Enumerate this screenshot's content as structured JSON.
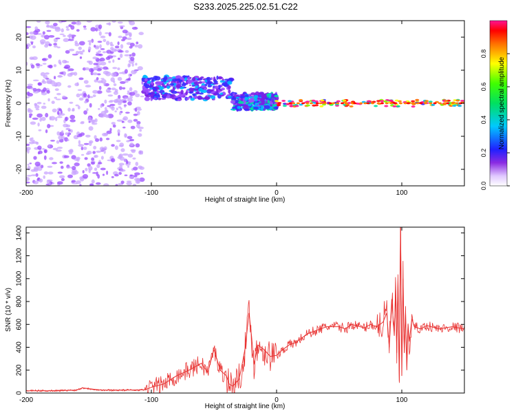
{
  "title": "S233.2025.225.02.51.C22",
  "chart_data": [
    {
      "type": "heatmap",
      "name": "spectrogram",
      "xlabel": "Height of straight line (km)",
      "ylabel": "Frequency (Hz)",
      "xlim": [
        -200,
        150
      ],
      "ylim": [
        -25,
        25
      ],
      "xticks": [
        -200,
        -100,
        0,
        100
      ],
      "yticks": [
        -20,
        -10,
        0,
        10,
        20
      ],
      "colorbar": {
        "label": "Normalized spectral amplitude",
        "range": [
          0,
          1
        ],
        "ticks": [
          0.0,
          0.2,
          0.4,
          0.6,
          0.8
        ]
      },
      "regions": [
        {
          "x_range": [
            -200,
            -107
          ],
          "freq_range": [
            -25,
            25
          ],
          "amplitude": 0.05,
          "description": "scattered noise"
        },
        {
          "x_range": [
            -107,
            -35
          ],
          "freq_range": [
            1,
            8
          ],
          "amplitude": 0.35,
          "description": "band"
        },
        {
          "x_range": [
            -35,
            0
          ],
          "freq_range": [
            -2,
            3
          ],
          "amplitude": 0.45,
          "description": "band"
        },
        {
          "x_range": [
            0,
            150
          ],
          "freq_range": [
            -1,
            1
          ],
          "amplitude": 0.95,
          "description": "narrow line"
        }
      ]
    },
    {
      "type": "line",
      "name": "snr",
      "xlabel": "Height of straight line (km)",
      "ylabel": "SNR (10 * v/v)",
      "xlim": [
        -200,
        150
      ],
      "ylim": [
        0,
        1450
      ],
      "xticks": [
        -200,
        -100,
        0,
        100
      ],
      "yticks": [
        0,
        200,
        400,
        600,
        800,
        1000,
        1200,
        1400
      ],
      "series": [
        {
          "name": "SNR",
          "color": "#e8302f",
          "x": [
            -200,
            -180,
            -160,
            -155,
            -140,
            -120,
            -105,
            -100,
            -90,
            -80,
            -70,
            -60,
            -55,
            -50,
            -45,
            -40,
            -38,
            -35,
            -30,
            -28,
            -25,
            -22,
            -20,
            -18,
            -15,
            -10,
            -5,
            0,
            5,
            10,
            15,
            20,
            25,
            30,
            40,
            50,
            55,
            60,
            70,
            75,
            80,
            85,
            88,
            90,
            92,
            94,
            95,
            96,
            97,
            98,
            99,
            100,
            101,
            102,
            103,
            104,
            105,
            106,
            108,
            110,
            115,
            120,
            130,
            140,
            150
          ],
          "y": [
            20,
            20,
            25,
            45,
            25,
            25,
            28,
            50,
            80,
            150,
            200,
            260,
            180,
            380,
            200,
            150,
            80,
            60,
            120,
            220,
            400,
            700,
            500,
            250,
            420,
            380,
            320,
            330,
            380,
            420,
            440,
            480,
            520,
            540,
            580,
            580,
            560,
            600,
            570,
            600,
            580,
            620,
            700,
            400,
            820,
            500,
            900,
            350,
            980,
            100,
            1450,
            150,
            1000,
            350,
            700,
            200,
            600,
            450,
            650,
            580,
            560,
            590,
            560,
            580,
            560
          ]
        }
      ]
    }
  ]
}
